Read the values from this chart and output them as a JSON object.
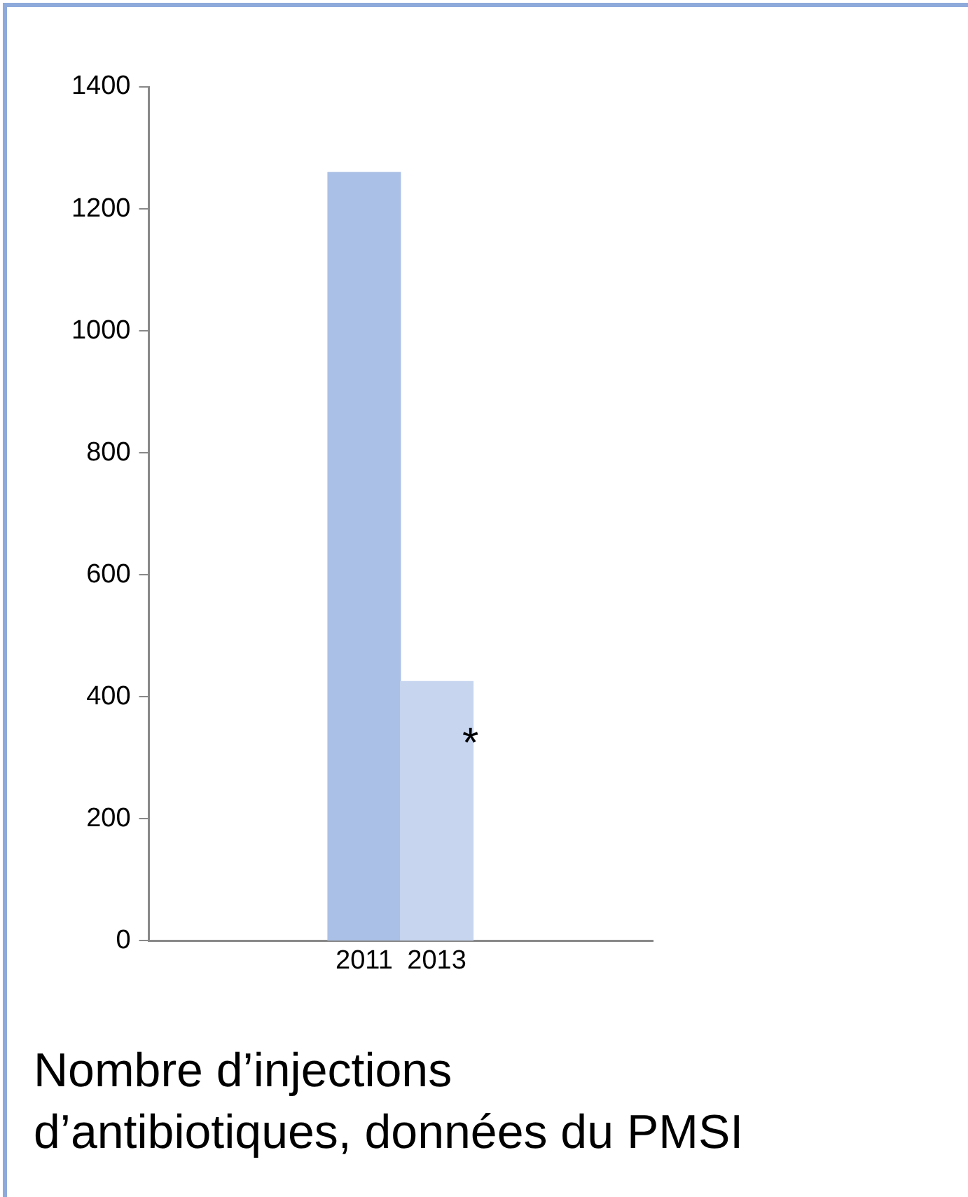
{
  "chart_data": {
    "type": "bar",
    "title": "Nombre d’injections\nd’antibiotiques, données du PMSI",
    "categories": [
      "2011",
      "2013"
    ],
    "values": [
      1260,
      425
    ],
    "colors": [
      "#abc0e6",
      "#c7d5ef"
    ],
    "ylim": [
      0,
      1400
    ],
    "yticks": [
      0,
      200,
      400,
      600,
      800,
      1000,
      1200,
      1400
    ],
    "annotations": [
      "*"
    ],
    "grid": false,
    "legend": false
  }
}
